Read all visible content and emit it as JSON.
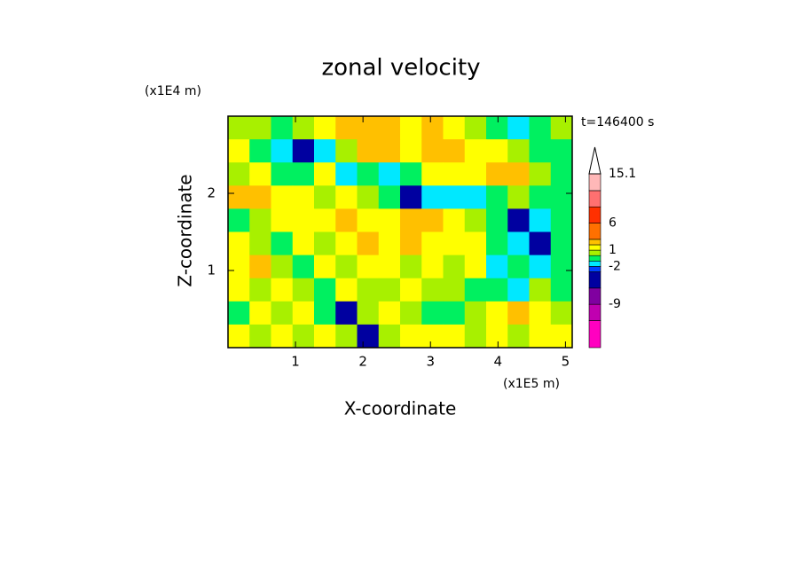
{
  "chart_data": {
    "type": "contour",
    "title": "zonal velocity",
    "x_label": "X-coordinate",
    "y_label": "Z-coordinate",
    "x_unit": "(x1E5 m)",
    "y_unit": "(x1E4 m)",
    "time_label": "t=146400 s",
    "xlim": [
      0,
      5.1
    ],
    "ylim": [
      0,
      3
    ],
    "xticks": [
      1,
      2,
      3,
      4,
      5
    ],
    "yticks": [
      1,
      2
    ],
    "field": {
      "values": [
        [
          0.5,
          0.5,
          -0.5,
          0.5,
          1.5,
          2.5,
          2.5,
          2.5,
          1.5,
          2.5,
          1.5,
          0.5,
          -0.5,
          -1.5,
          -0.5,
          0.5
        ],
        [
          1.5,
          -0.5,
          -1.5,
          -4,
          -1.5,
          0.5,
          2.5,
          2.5,
          1.5,
          2.5,
          2.5,
          1.5,
          1.5,
          0.5,
          -0.5,
          -0.5
        ],
        [
          0.5,
          1.5,
          -0.5,
          -0.5,
          1.5,
          -1.5,
          -0.5,
          -1.5,
          -0.5,
          1.5,
          1.5,
          1.5,
          2.5,
          2.5,
          0.5,
          -0.5
        ],
        [
          2.5,
          2.5,
          1.5,
          1.5,
          0.5,
          1.5,
          0.5,
          -0.5,
          -3.5,
          -1.5,
          -1.5,
          -1.5,
          -0.5,
          0.5,
          -0.5,
          -0.5
        ],
        [
          -0.5,
          0.5,
          1.5,
          1.5,
          1.5,
          2.5,
          1.5,
          1.5,
          2.5,
          2.5,
          1.5,
          0.5,
          -0.5,
          -3.5,
          -1.5,
          -0.5
        ],
        [
          1.5,
          0.5,
          -0.5,
          1.5,
          0.5,
          1.5,
          2.5,
          1.5,
          2.5,
          1.5,
          1.5,
          1.5,
          -0.5,
          -1.5,
          -4,
          -0.5
        ],
        [
          1.5,
          2.5,
          0.5,
          -0.5,
          1.5,
          0.5,
          1.5,
          1.5,
          0.5,
          1.5,
          0.5,
          1.5,
          -1.5,
          -0.5,
          -1.5,
          -0.5
        ],
        [
          1.5,
          0.5,
          1.5,
          0.5,
          -0.5,
          1.5,
          0.5,
          0.5,
          1.5,
          0.5,
          0.5,
          -0.5,
          -0.5,
          -1.5,
          0.5,
          -0.5
        ],
        [
          -0.5,
          1.5,
          0.5,
          1.5,
          -0.5,
          -3.5,
          0.5,
          1.5,
          0.5,
          -0.5,
          -0.5,
          0.5,
          1.5,
          2.5,
          1.5,
          0.5
        ],
        [
          1.5,
          0.5,
          1.5,
          0.5,
          1.5,
          0.5,
          -3.5,
          0.5,
          1.5,
          1.5,
          1.5,
          0.5,
          1.5,
          0.5,
          1.5,
          1.5
        ]
      ]
    },
    "colorbar": {
      "levels": [
        -17,
        -12,
        -9,
        -6,
        -3,
        -2,
        -1,
        0,
        1,
        2,
        3,
        6,
        9,
        12,
        15.1
      ],
      "colors": [
        "#ff00c0",
        "#c000b0",
        "#8000a0",
        "#0000a0",
        "#0040ff",
        "#00e8ff",
        "#00f060",
        "#a8f000",
        "#ffff00",
        "#ffc000",
        "#ff7000",
        "#ff3000",
        "#ff7070",
        "#ffb8b8"
      ],
      "extend_color": "#ffffff",
      "ticks": [
        15.1,
        6,
        1,
        -2,
        -9
      ]
    }
  }
}
